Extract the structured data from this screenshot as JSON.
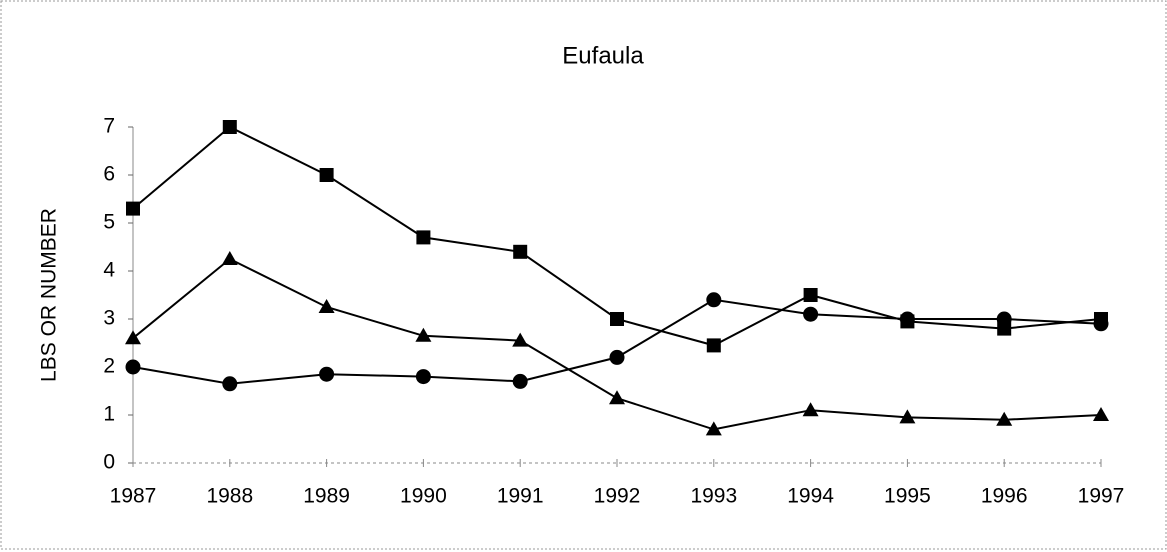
{
  "chart_data": {
    "type": "line",
    "title": "Eufaula",
    "y_label": "LBS OR NUMBER",
    "categories": [
      "1987",
      "1988",
      "1989",
      "1990",
      "1991",
      "1992",
      "1993",
      "1994",
      "1995",
      "1996",
      "1997"
    ],
    "series": [
      {
        "marker": "square",
        "color": "#000000",
        "values": [
          5.3,
          7.0,
          6.0,
          4.7,
          4.4,
          3.0,
          2.45,
          3.5,
          2.95,
          2.8,
          3.0
        ]
      },
      {
        "marker": "triangle",
        "color": "#000000",
        "values": [
          2.6,
          4.25,
          3.25,
          2.65,
          2.55,
          1.35,
          0.7,
          1.1,
          0.95,
          0.9,
          1.0
        ]
      },
      {
        "marker": "circle",
        "color": "#000000",
        "values": [
          2.0,
          1.65,
          1.85,
          1.8,
          1.7,
          2.2,
          3.4,
          3.1,
          3.0,
          3.0,
          2.9
        ]
      }
    ],
    "ylim": [
      0,
      7
    ],
    "yticks": [
      0,
      1,
      2,
      3,
      4,
      5,
      6,
      7
    ],
    "grid": false
  }
}
